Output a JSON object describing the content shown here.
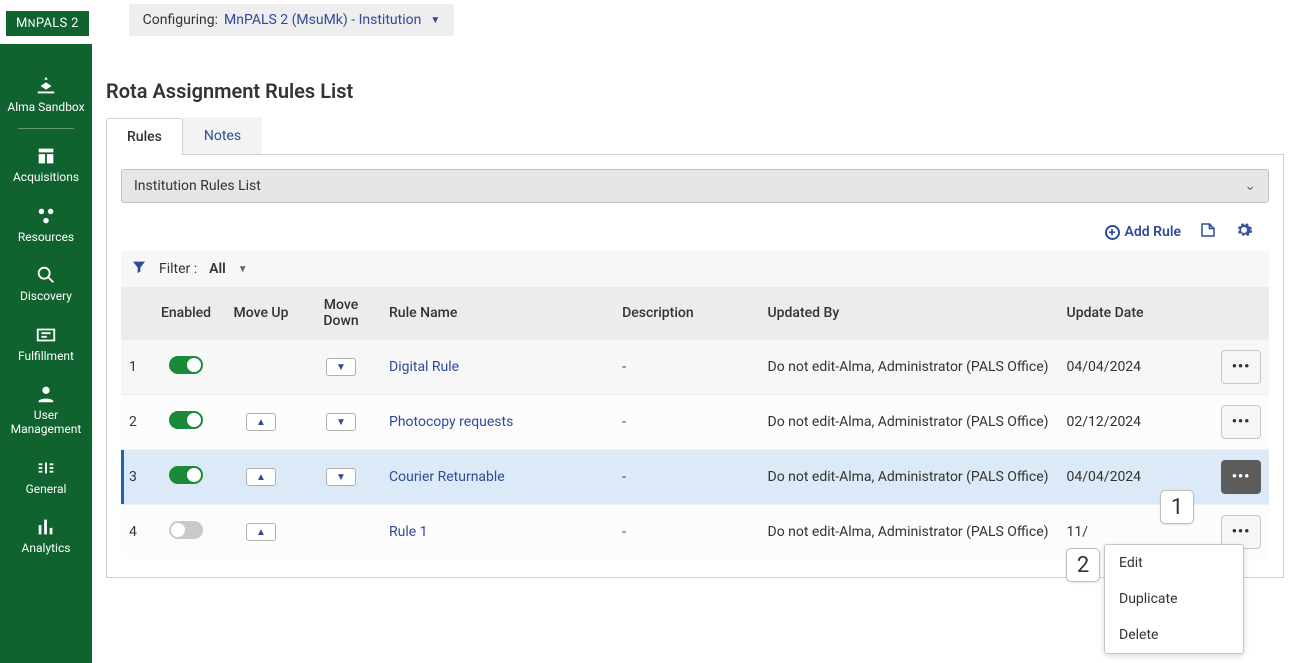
{
  "logo": {
    "prefix": "M",
    "mid": "N",
    "suffix": "PALS 2"
  },
  "config_bar": {
    "label": "Configuring:",
    "value": "MnPALS 2 (MsuMk) - Institution"
  },
  "sidebar": {
    "items": [
      {
        "label": "Alma Sandbox"
      },
      {
        "label": "Acquisitions"
      },
      {
        "label": "Resources"
      },
      {
        "label": "Discovery"
      },
      {
        "label": "Fulfillment"
      },
      {
        "label": "User Management"
      },
      {
        "label": "General"
      },
      {
        "label": "Analytics"
      }
    ]
  },
  "page": {
    "title": "Rota Assignment Rules List"
  },
  "tabs": {
    "rules": "Rules",
    "notes": "Notes"
  },
  "subheader": {
    "title": "Institution Rules List"
  },
  "toolbar": {
    "add_rule": "Add Rule"
  },
  "filter": {
    "label": "Filter :",
    "value": "All"
  },
  "columns": {
    "enabled": "Enabled",
    "move_up": "Move Up",
    "move_down": "Move Down",
    "rule_name": "Rule Name",
    "description": "Description",
    "updated_by": "Updated By",
    "update_date": "Update Date"
  },
  "rows": [
    {
      "idx": "1",
      "enabled": true,
      "up": false,
      "down": true,
      "name": "Digital Rule",
      "desc": "-",
      "by": "Do not edit-Alma, Administrator (PALS Office)",
      "date": "04/04/2024",
      "selected": false,
      "odd": true
    },
    {
      "idx": "2",
      "enabled": true,
      "up": true,
      "down": true,
      "name": "Photocopy requests",
      "desc": "-",
      "by": "Do not edit-Alma, Administrator (PALS Office)",
      "date": "02/12/2024",
      "selected": false,
      "odd": false
    },
    {
      "idx": "3",
      "enabled": true,
      "up": true,
      "down": true,
      "name": "Courier Returnable",
      "desc": "-",
      "by": "Do not edit-Alma, Administrator (PALS Office)",
      "date": "04/04/2024",
      "selected": true,
      "odd": false
    },
    {
      "idx": "4",
      "enabled": false,
      "up": true,
      "down": false,
      "name": "Rule 1",
      "desc": "-",
      "by": "Do not edit-Alma, Administrator (PALS Office)",
      "date": "11/",
      "selected": false,
      "odd": false
    }
  ],
  "menu": {
    "edit": "Edit",
    "duplicate": "Duplicate",
    "delete": "Delete"
  },
  "callouts": {
    "one": "1",
    "two": "2"
  }
}
